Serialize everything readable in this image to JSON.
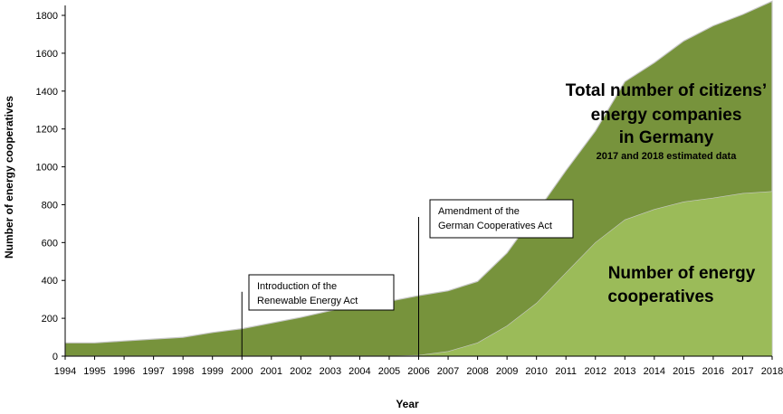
{
  "chart_data": {
    "type": "area",
    "x": [
      1994,
      1995,
      1996,
      1997,
      1998,
      1999,
      2000,
      2001,
      2002,
      2003,
      2004,
      2005,
      2006,
      2007,
      2008,
      2009,
      2010,
      2011,
      2012,
      2013,
      2014,
      2015,
      2016,
      2017,
      2018
    ],
    "xlabel": "Year",
    "ylabel": "Number of energy cooperatives",
    "ylim": [
      0,
      1800
    ],
    "yticks": [
      0,
      200,
      400,
      600,
      800,
      1000,
      1200,
      1400,
      1600,
      1800
    ],
    "grid": false,
    "series": [
      {
        "name": "Total number of citizens’ energy companies in Germany",
        "color": "#77933c",
        "values": [
          70,
          70,
          80,
          90,
          100,
          125,
          145,
          175,
          205,
          240,
          265,
          290,
          320,
          345,
          395,
          545,
          760,
          980,
          1190,
          1450,
          1550,
          1665,
          1745,
          1805,
          1875
        ]
      },
      {
        "name": "Number of energy cooperatives",
        "color": "#9bbb59",
        "values": [
          0,
          0,
          0,
          0,
          0,
          0,
          0,
          0,
          0,
          0,
          0,
          0,
          5,
          25,
          70,
          160,
          280,
          440,
          600,
          720,
          775,
          815,
          835,
          860,
          870
        ]
      }
    ],
    "labels": {
      "total_line1": "Total number of citizens’",
      "total_line2": "energy companies",
      "total_line3": "in Germany",
      "estimate_note": "2017 and 2018 estimated data",
      "coop_line1": "Number of energy",
      "coop_line2": "cooperatives"
    },
    "annotations": [
      {
        "line1": "Introduction of the",
        "line2": "Renewable Energy Act",
        "year": 2000,
        "marker_top": 340
      },
      {
        "line1": "Amendment of the",
        "line2": "German Cooperatives Act",
        "year": 2006,
        "marker_top": 735
      }
    ]
  }
}
